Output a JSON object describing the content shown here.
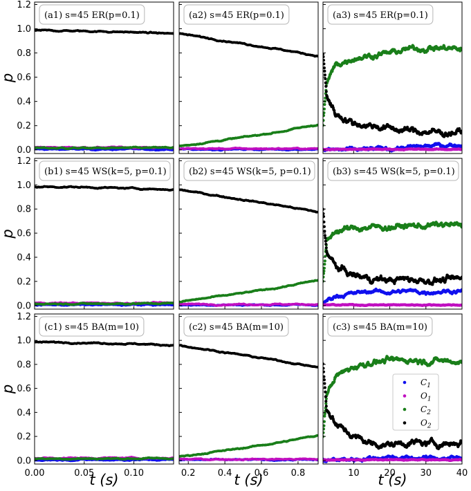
{
  "chart_data": {
    "type": "scatter",
    "y_label": "p",
    "x_label": "t (s)",
    "y_ticks": [
      "0.0",
      "0.2",
      "0.4",
      "0.6",
      "0.8",
      "1.0",
      "1.2"
    ],
    "ylim": [
      -0.03,
      1.22
    ],
    "columns": [
      {
        "xlim": [
          0,
          0.14
        ],
        "x_ticks": [
          0,
          0.05,
          0.1
        ],
        "x_tick_labels": [
          "0.00",
          "0.05",
          "0.10"
        ]
      },
      {
        "xlim": [
          0.15,
          0.91
        ],
        "x_ticks": [
          0.2,
          0.4,
          0.6,
          0.8
        ],
        "x_tick_labels": [
          "0.2",
          "0.4",
          "0.6",
          "0.8"
        ]
      },
      {
        "xlim": [
          1.5,
          40
        ],
        "x_ticks": [
          10,
          20,
          30,
          40
        ],
        "x_tick_labels": [
          "10",
          "20",
          "30",
          "40"
        ]
      }
    ],
    "legend": {
      "entries": [
        {
          "label": "C1",
          "base": "C",
          "sub": "1",
          "color": "#1010ee"
        },
        {
          "label": "O1",
          "base": "O",
          "sub": "1",
          "color": "#c010c0"
        },
        {
          "label": "C2",
          "base": "C",
          "sub": "2",
          "color": "#1a7f1a"
        },
        {
          "label": "O2",
          "base": "O",
          "sub": "2",
          "color": "#000000"
        }
      ]
    },
    "panels": [
      {
        "id": "a1",
        "label": "(a1)  s=45 ER(p=0.1)",
        "series": [
          {
            "name": "C1",
            "x": [
              0,
              0.035,
              0.07,
              0.105,
              0.14
            ],
            "y": [
              0.005,
              0.005,
              0.005,
              0.005,
              0.005
            ]
          },
          {
            "name": "O1",
            "x": [
              0,
              0.035,
              0.07,
              0.105,
              0.14
            ],
            "y": [
              0.02,
              0.02,
              0.02,
              0.02,
              0.02
            ]
          },
          {
            "name": "C2",
            "x": [
              0,
              0.035,
              0.07,
              0.105,
              0.14
            ],
            "y": [
              0.015,
              0.015,
              0.015,
              0.016,
              0.018
            ]
          },
          {
            "name": "O2",
            "x": [
              0,
              0.035,
              0.07,
              0.105,
              0.14
            ],
            "y": [
              0.985,
              0.983,
              0.977,
              0.97,
              0.96
            ]
          }
        ]
      },
      {
        "id": "a2",
        "label": "(a2)  s=45 ER(p=0.1)",
        "series": [
          {
            "name": "C1",
            "x": [
              0.15,
              0.34,
              0.53,
              0.72,
              0.91
            ],
            "y": [
              0.005,
              0.005,
              0.005,
              0.005,
              0.005
            ]
          },
          {
            "name": "O1",
            "x": [
              0.15,
              0.34,
              0.53,
              0.72,
              0.91
            ],
            "y": [
              0.01,
              0.01,
              0.01,
              0.01,
              0.01
            ]
          },
          {
            "name": "C2",
            "x": [
              0.15,
              0.34,
              0.53,
              0.72,
              0.91
            ],
            "y": [
              0.03,
              0.07,
              0.11,
              0.155,
              0.21
            ]
          },
          {
            "name": "O2",
            "x": [
              0.15,
              0.34,
              0.53,
              0.72,
              0.91
            ],
            "y": [
              0.96,
              0.915,
              0.87,
              0.825,
              0.775
            ]
          }
        ]
      },
      {
        "id": "a3",
        "label": "(a3)  s=45 ER(p=0.1)",
        "series": [
          {
            "name": "C1",
            "x": [
              1.5,
              5,
              10,
              15,
              20,
              25,
              30,
              35,
              40
            ],
            "y": [
              0.0,
              0.0,
              0.0,
              0.005,
              0.01,
              0.02,
              0.03,
              0.04,
              0.04
            ]
          },
          {
            "name": "O1",
            "x": [
              1.5,
              5,
              10,
              15,
              20,
              25,
              30,
              35,
              40
            ],
            "y": [
              0.005,
              0.005,
              0.005,
              0.005,
              0.005,
              0.005,
              0.005,
              0.005,
              0.005
            ]
          },
          {
            "name": "C2",
            "x": [
              1.5,
              2.5,
              5,
              10,
              15,
              20,
              25,
              30,
              35,
              40
            ],
            "y": [
              0.2,
              0.55,
              0.7,
              0.76,
              0.78,
              0.8,
              0.83,
              0.84,
              0.84,
              0.83
            ]
          },
          {
            "name": "O2",
            "x": [
              1.5,
              2.5,
              5,
              10,
              15,
              20,
              25,
              30,
              35,
              40
            ],
            "y": [
              0.8,
              0.45,
              0.3,
              0.22,
              0.2,
              0.18,
              0.16,
              0.15,
              0.14,
              0.15
            ]
          }
        ]
      },
      {
        "id": "b1",
        "label": "(b1)  s=45 WS(k=5, p=0.1)",
        "series": [
          {
            "name": "C1",
            "x": [
              0,
              0.035,
              0.07,
              0.105,
              0.14
            ],
            "y": [
              0.005,
              0.005,
              0.005,
              0.005,
              0.005
            ]
          },
          {
            "name": "O1",
            "x": [
              0,
              0.035,
              0.07,
              0.105,
              0.14
            ],
            "y": [
              0.02,
              0.02,
              0.02,
              0.02,
              0.02
            ]
          },
          {
            "name": "C2",
            "x": [
              0,
              0.035,
              0.07,
              0.105,
              0.14
            ],
            "y": [
              0.015,
              0.015,
              0.015,
              0.016,
              0.018
            ]
          },
          {
            "name": "O2",
            "x": [
              0,
              0.035,
              0.07,
              0.105,
              0.14
            ],
            "y": [
              0.985,
              0.983,
              0.977,
              0.97,
              0.96
            ]
          }
        ]
      },
      {
        "id": "b2",
        "label": "(b2)  s=45 WS(k=5, p=0.1)",
        "series": [
          {
            "name": "C1",
            "x": [
              0.15,
              0.34,
              0.53,
              0.72,
              0.91
            ],
            "y": [
              0.005,
              0.005,
              0.005,
              0.005,
              0.005
            ]
          },
          {
            "name": "O1",
            "x": [
              0.15,
              0.34,
              0.53,
              0.72,
              0.91
            ],
            "y": [
              0.01,
              0.01,
              0.01,
              0.01,
              0.01
            ]
          },
          {
            "name": "C2",
            "x": [
              0.15,
              0.34,
              0.53,
              0.72,
              0.91
            ],
            "y": [
              0.03,
              0.07,
              0.11,
              0.155,
              0.21
            ]
          },
          {
            "name": "O2",
            "x": [
              0.15,
              0.34,
              0.53,
              0.72,
              0.91
            ],
            "y": [
              0.96,
              0.915,
              0.87,
              0.825,
              0.775
            ]
          }
        ]
      },
      {
        "id": "b3",
        "label": "(b3)  s=45 WS(k=5, p=0.1)",
        "series": [
          {
            "name": "C1",
            "x": [
              1.5,
              3,
              5,
              10,
              15,
              20,
              25,
              30,
              35,
              40
            ],
            "y": [
              0.01,
              0.05,
              0.08,
              0.1,
              0.12,
              0.11,
              0.12,
              0.11,
              0.12,
              0.12
            ]
          },
          {
            "name": "O1",
            "x": [
              1.5,
              10,
              20,
              30,
              40
            ],
            "y": [
              0.005,
              0.005,
              0.005,
              0.005,
              0.005
            ]
          },
          {
            "name": "C2",
            "x": [
              1.5,
              2.5,
              5,
              10,
              15,
              20,
              25,
              30,
              35,
              40
            ],
            "y": [
              0.2,
              0.52,
              0.62,
              0.64,
              0.65,
              0.65,
              0.66,
              0.66,
              0.67,
              0.66
            ]
          },
          {
            "name": "O2",
            "x": [
              1.5,
              2.5,
              5,
              10,
              15,
              20,
              25,
              30,
              35,
              40
            ],
            "y": [
              0.8,
              0.45,
              0.32,
              0.25,
              0.22,
              0.21,
              0.22,
              0.21,
              0.21,
              0.22
            ]
          }
        ]
      },
      {
        "id": "c1",
        "label": "(c1)  s=45 BA(m=10)",
        "series": [
          {
            "name": "C1",
            "x": [
              0,
              0.035,
              0.07,
              0.105,
              0.14
            ],
            "y": [
              0.005,
              0.005,
              0.005,
              0.005,
              0.005
            ]
          },
          {
            "name": "O1",
            "x": [
              0,
              0.035,
              0.07,
              0.105,
              0.14
            ],
            "y": [
              0.02,
              0.02,
              0.02,
              0.02,
              0.02
            ]
          },
          {
            "name": "C2",
            "x": [
              0,
              0.035,
              0.07,
              0.105,
              0.14
            ],
            "y": [
              0.015,
              0.015,
              0.015,
              0.016,
              0.018
            ]
          },
          {
            "name": "O2",
            "x": [
              0,
              0.035,
              0.07,
              0.105,
              0.14
            ],
            "y": [
              0.985,
              0.983,
              0.977,
              0.97,
              0.96
            ]
          }
        ]
      },
      {
        "id": "c2",
        "label": "(c2)  s=45 BA(m=10)",
        "series": [
          {
            "name": "C1",
            "x": [
              0.15,
              0.34,
              0.53,
              0.72,
              0.91
            ],
            "y": [
              0.005,
              0.005,
              0.005,
              0.005,
              0.005
            ]
          },
          {
            "name": "O1",
            "x": [
              0.15,
              0.34,
              0.53,
              0.72,
              0.91
            ],
            "y": [
              0.01,
              0.01,
              0.01,
              0.01,
              0.01
            ]
          },
          {
            "name": "C2",
            "x": [
              0.15,
              0.34,
              0.53,
              0.72,
              0.91
            ],
            "y": [
              0.03,
              0.07,
              0.11,
              0.155,
              0.21
            ]
          },
          {
            "name": "O2",
            "x": [
              0.15,
              0.34,
              0.53,
              0.72,
              0.91
            ],
            "y": [
              0.96,
              0.915,
              0.87,
              0.825,
              0.775
            ]
          }
        ]
      },
      {
        "id": "c3",
        "label": "(c3)  s=45 BA(m=10)",
        "series": [
          {
            "name": "C1",
            "x": [
              1.5,
              10,
              15,
              20,
              25,
              30,
              35,
              40
            ],
            "y": [
              0.0,
              0.01,
              0.02,
              0.03,
              0.02,
              0.02,
              0.02,
              0.02
            ]
          },
          {
            "name": "O1",
            "x": [
              1.5,
              10,
              20,
              30,
              40
            ],
            "y": [
              0.005,
              0.005,
              0.005,
              0.005,
              0.005
            ]
          },
          {
            "name": "C2",
            "x": [
              1.5,
              2.5,
              5,
              10,
              15,
              20,
              25,
              30,
              35,
              40
            ],
            "y": [
              0.2,
              0.55,
              0.7,
              0.78,
              0.82,
              0.83,
              0.84,
              0.83,
              0.83,
              0.82
            ]
          },
          {
            "name": "O2",
            "x": [
              1.5,
              2.5,
              5,
              10,
              15,
              20,
              25,
              30,
              35,
              40
            ],
            "y": [
              0.8,
              0.45,
              0.3,
              0.2,
              0.14,
              0.13,
              0.15,
              0.14,
              0.14,
              0.15
            ]
          }
        ]
      }
    ]
  }
}
